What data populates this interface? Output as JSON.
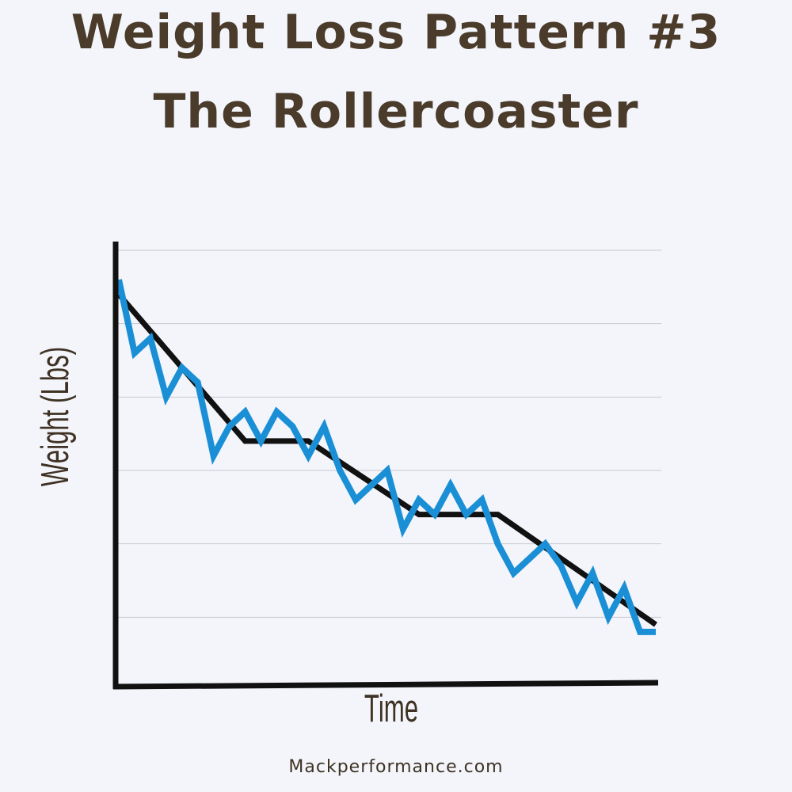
{
  "title": {
    "line1": "Weight Loss Pattern #3",
    "line2": "The Rollercoaster"
  },
  "footer": "Mackperformance.com",
  "colors": {
    "background": "#f3f5fb",
    "title": "#4a3b2a",
    "trend": "#111111",
    "actual": "#1a8fd6",
    "grid": "#c7c9cf"
  },
  "chart_data": {
    "type": "line",
    "xlabel": "Time",
    "ylabel": "Weight (Lbs)",
    "grid": true,
    "xlim": [
      0,
      34
    ],
    "ylim": [
      0,
      6
    ],
    "series": [
      {
        "style": "trend",
        "x": [
          0,
          8,
          12,
          19,
          24,
          34
        ],
        "y": [
          5.4,
          3.4,
          3.4,
          2.4,
          2.4,
          0.9
        ]
      },
      {
        "style": "actual",
        "x": [
          0,
          1,
          2,
          3,
          4,
          5,
          6,
          7,
          8,
          9,
          10,
          11,
          12,
          13,
          14,
          15,
          16,
          17,
          18,
          19,
          20,
          21,
          22,
          23,
          24,
          25,
          26,
          27,
          28,
          29,
          30,
          31,
          32,
          33,
          34
        ],
        "y": [
          5.6,
          4.6,
          4.8,
          4.0,
          4.4,
          4.2,
          3.2,
          3.6,
          3.8,
          3.4,
          3.8,
          3.6,
          3.2,
          3.6,
          3.0,
          2.6,
          2.8,
          3.0,
          2.2,
          2.6,
          2.4,
          2.8,
          2.4,
          2.6,
          2.0,
          1.6,
          1.8,
          2.0,
          1.7,
          1.2,
          1.6,
          1.0,
          1.4,
          0.8,
          0.8
        ]
      }
    ]
  }
}
